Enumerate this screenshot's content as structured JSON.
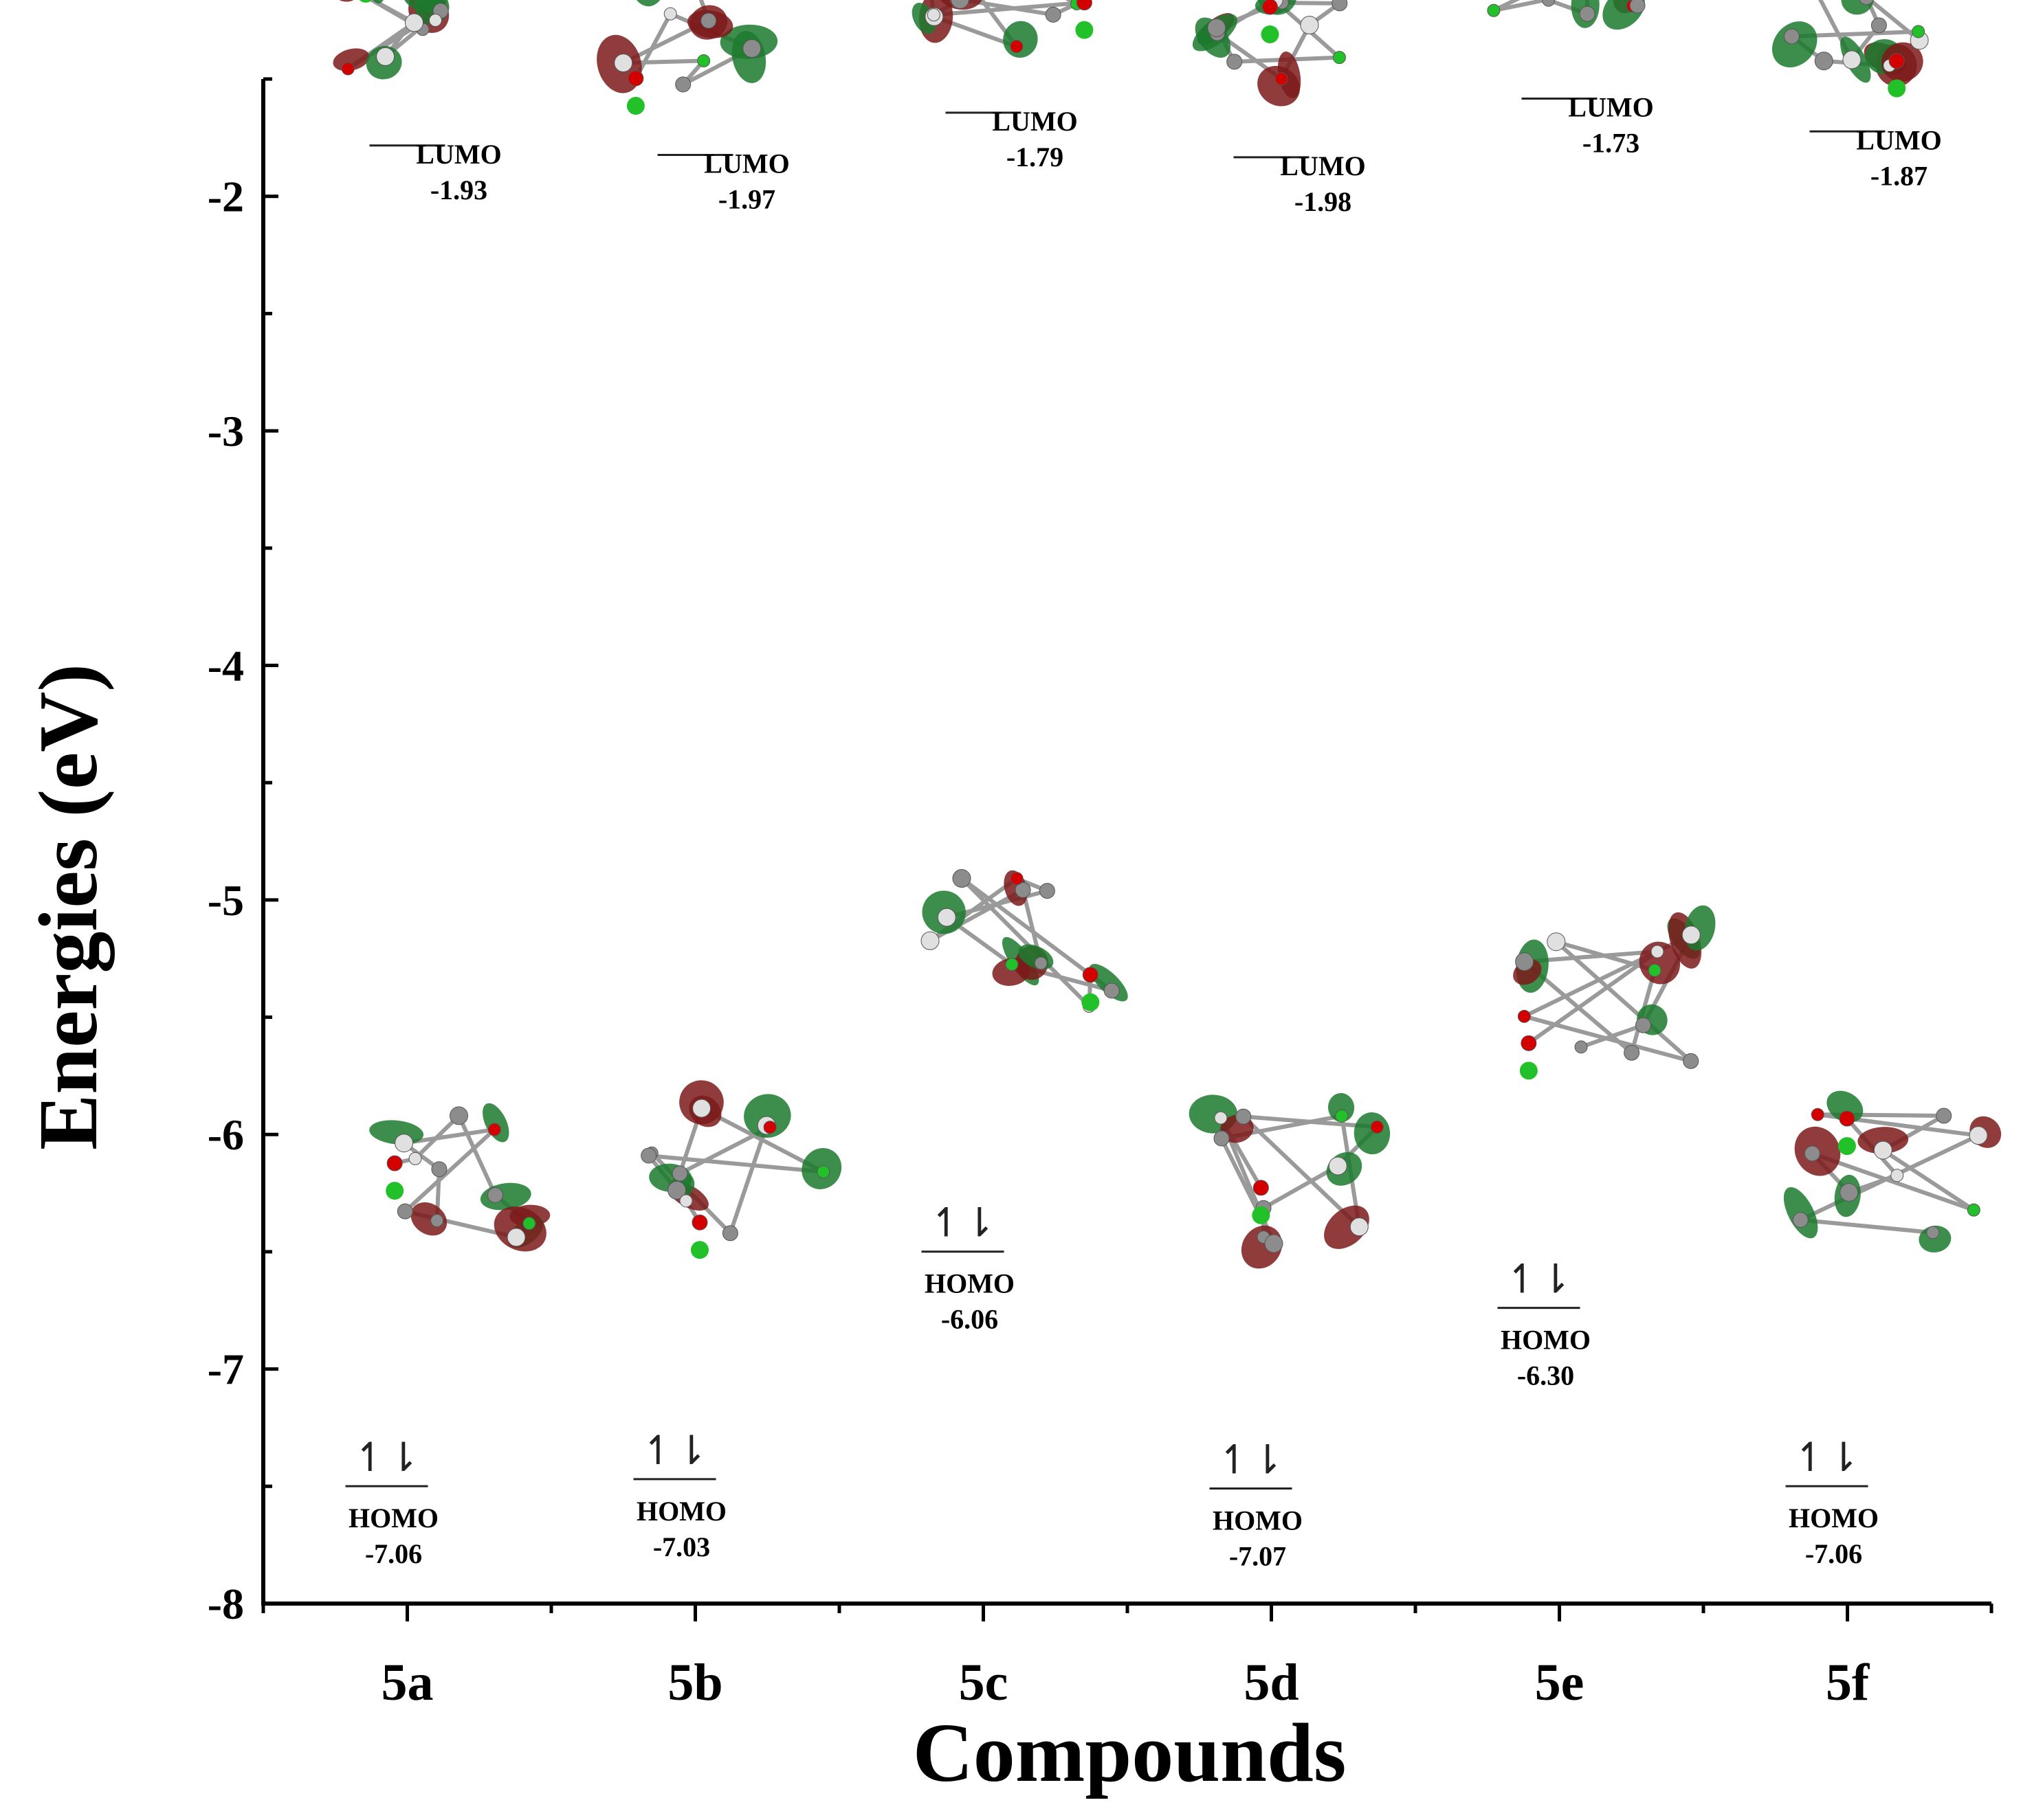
{
  "chart_data": {
    "type": "energy-level diagram",
    "title": "",
    "xlabel": "Compounds",
    "ylabel": "Energies (eV)",
    "ylim": [
      -8,
      -1.5
    ],
    "yticks": [
      -2,
      -3,
      -4,
      -5,
      -6,
      -7,
      -8
    ],
    "categories": [
      "5a",
      "5b",
      "5c",
      "5d",
      "5e",
      "5f"
    ],
    "series": [
      {
        "name": "LUMO",
        "values": [
          -1.93,
          -1.97,
          -1.79,
          -1.98,
          -1.73,
          -1.87
        ],
        "value_labels": [
          "-1.93",
          "-1.97",
          "-1.79",
          "-1.98",
          "-1.73",
          "-1.87"
        ]
      },
      {
        "name": "HOMO",
        "values": [
          -7.06,
          -7.03,
          -6.06,
          -7.07,
          -6.3,
          -7.06
        ],
        "value_labels": [
          "-7.06",
          "-7.03",
          "-6.06",
          "-7.07",
          "-6.30",
          "-7.06"
        ]
      }
    ],
    "spin_marker": "↿⇂",
    "colors": {
      "axis": "#000000",
      "lobe_positive": "#1b7a2e",
      "lobe_negative": "#7d1a1a",
      "atom_carbon": "#8c8c8c",
      "atom_hydrogen": "#e0e0e0",
      "atom_oxygen": "#d40000",
      "atom_chlorine": "#22c12a",
      "atom_fluorine": "#7fd8ff",
      "atom_sulfur": "#e8b400"
    }
  }
}
